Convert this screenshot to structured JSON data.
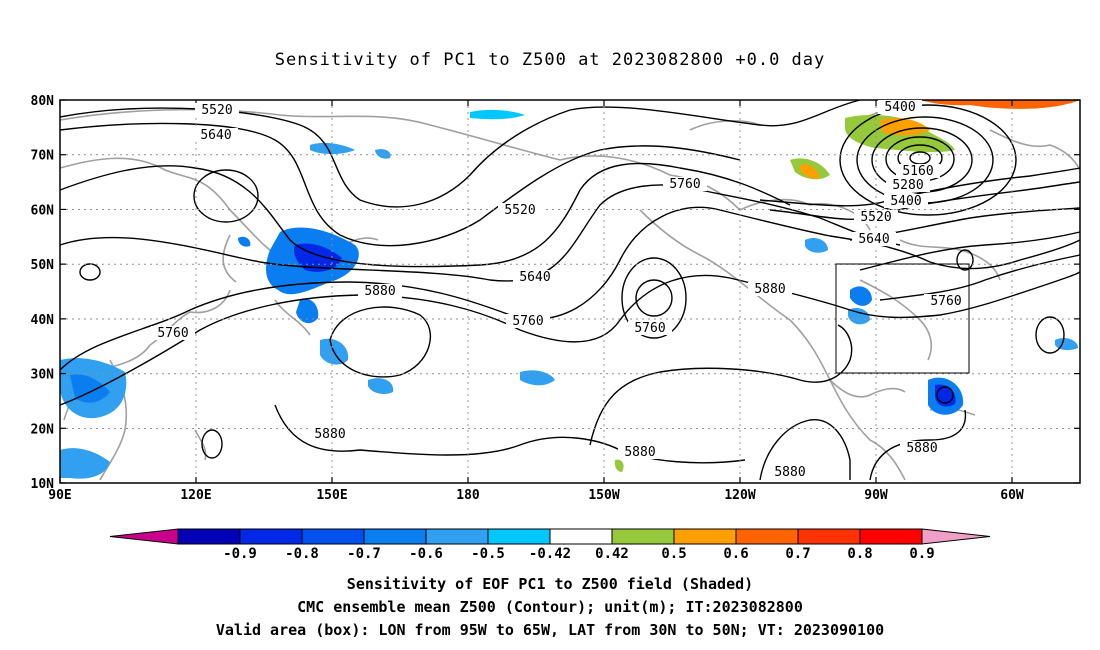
{
  "title": "Sensitivity of PC1 to Z500 at 2023082800 +0.0 day",
  "lat_labels": [
    "80N",
    "70N",
    "60N",
    "50N",
    "40N",
    "30N",
    "20N",
    "10N"
  ],
  "lon_labels": [
    "90E",
    "120E",
    "150E",
    "180",
    "150W",
    "120W",
    "90W",
    "60W"
  ],
  "contour_labels": [
    {
      "text": "5520"
    },
    {
      "text": "5640"
    },
    {
      "text": "5520"
    },
    {
      "text": "5760"
    },
    {
      "text": "5640"
    },
    {
      "text": "5760"
    },
    {
      "text": "5880"
    },
    {
      "text": "5760"
    },
    {
      "text": "5760"
    },
    {
      "text": "5880"
    },
    {
      "text": "5880"
    },
    {
      "text": "5880"
    },
    {
      "text": "5880"
    },
    {
      "text": "5880"
    },
    {
      "text": "5400"
    },
    {
      "text": "5160"
    },
    {
      "text": "5280"
    },
    {
      "text": "5400"
    },
    {
      "text": "5520"
    },
    {
      "text": "5640"
    },
    {
      "text": "5760"
    }
  ],
  "colorbar": {
    "colors": [
      "#c8008c",
      "#0000b4",
      "#0028e6",
      "#0050f0",
      "#0a7df0",
      "#32a0f0",
      "#00c8ff",
      "#ffffff",
      "#96c83c",
      "#ffa000",
      "#ff6400",
      "#ff3200",
      "#ff0000",
      "#f0a0c8"
    ],
    "labels": [
      "-0.9",
      "-0.8",
      "-0.7",
      "-0.6",
      "-0.5",
      "-0.42",
      "0.42",
      "0.5",
      "0.6",
      "0.7",
      "0.8",
      "0.9"
    ]
  },
  "valid_box": {
    "lon_min": "95W",
    "lon_max": "65W",
    "lat_min": "30N",
    "lat_max": "50N"
  },
  "footer": {
    "line1": "Sensitivity of EOF PC1 to Z500 field (Shaded)",
    "line2": "CMC ensemble mean Z500 (Contour); unit(m); IT:2023082800",
    "line3": "Valid area (box): LON from 95W to 65W, LAT from 30N to 50N; VT: 2023090100"
  }
}
